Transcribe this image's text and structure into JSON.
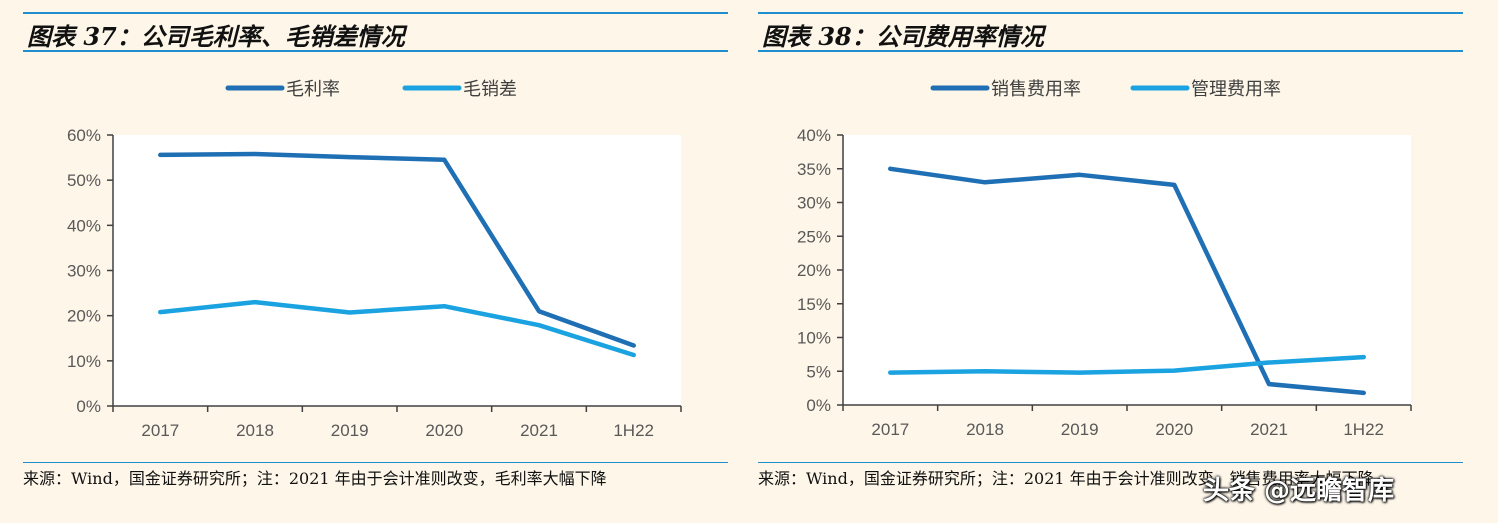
{
  "watermark": "头条 @远瞻智库",
  "chart_data": [
    {
      "type": "line",
      "title": "图表 37：公司毛利率、毛销差情况",
      "categories": [
        "2017",
        "2018",
        "2019",
        "2020",
        "2021",
        "1H22"
      ],
      "ylim": [
        0,
        60
      ],
      "yticks": [
        "0%",
        "10%",
        "20%",
        "30%",
        "40%",
        "50%",
        "60%"
      ],
      "ytick_values": [
        0,
        10,
        20,
        30,
        40,
        50,
        60
      ],
      "series": [
        {
          "name": "毛利率",
          "color": "#1f6fb5",
          "values": [
            55.6,
            55.8,
            55.1,
            54.5,
            21.0,
            13.4
          ]
        },
        {
          "name": "毛销差",
          "color": "#1aa3e0",
          "values": [
            20.8,
            23.0,
            20.7,
            22.1,
            17.9,
            11.3
          ]
        }
      ],
      "source": "来源：Wind，国金证券研究所；注：2021 年由于会计准则改变，毛利率大幅下降"
    },
    {
      "type": "line",
      "title": "图表 38：公司费用率情况",
      "categories": [
        "2017",
        "2018",
        "2019",
        "2020",
        "2021",
        "1H22"
      ],
      "ylim": [
        0,
        40
      ],
      "yticks": [
        "0%",
        "5%",
        "10%",
        "15%",
        "20%",
        "25%",
        "30%",
        "35%",
        "40%"
      ],
      "ytick_values": [
        0,
        5,
        10,
        15,
        20,
        25,
        30,
        35,
        40
      ],
      "series": [
        {
          "name": "销售费用率",
          "color": "#1f6fb5",
          "values": [
            35.0,
            33.0,
            34.1,
            32.6,
            3.1,
            1.8
          ]
        },
        {
          "name": "管理费用率",
          "color": "#1aa3e0",
          "values": [
            4.8,
            5.0,
            4.8,
            5.1,
            6.3,
            7.1
          ]
        }
      ],
      "source": "来源：Wind，国金证券研究所；注：2021 年由于会计准则改变，销售费用率大幅下降"
    }
  ]
}
